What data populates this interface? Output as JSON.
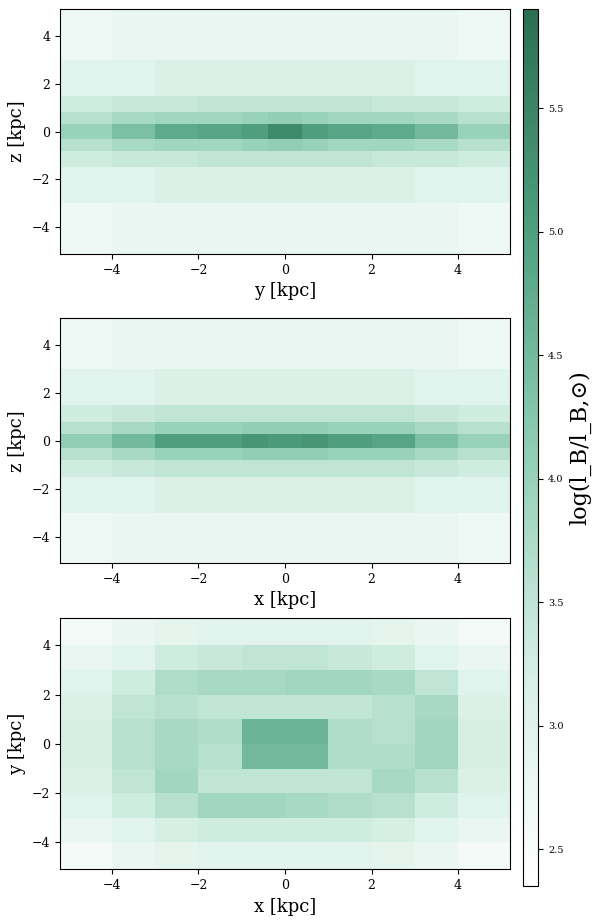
{
  "chart_data": [
    {
      "type": "heatmap",
      "xlabel": "y [kpc]",
      "ylabel": "z [kpc]",
      "xlim": [
        -5.2,
        5.2
      ],
      "ylim": [
        -5.1,
        5.1
      ],
      "xticks": [
        {
          "value": -4,
          "label": "−4"
        },
        {
          "value": -2,
          "label": "−2"
        },
        0,
        2,
        4
      ],
      "yticks": [
        {
          "value": -4,
          "label": "−4"
        },
        {
          "value": -2,
          "label": "−2"
        },
        0,
        2,
        4
      ],
      "x_edges": [
        -5.2,
        -4,
        -3,
        -2,
        -1,
        -0.4,
        0.4,
        1,
        2,
        3,
        4,
        5.2
      ],
      "y_edges": [
        -5.1,
        -3,
        -1.5,
        -0.8,
        -0.3,
        0.3,
        0.8,
        1.5,
        3,
        5.1
      ],
      "cells": [
        [
          2.7,
          2.8,
          2.8,
          2.8,
          2.8,
          2.8,
          2.8,
          2.8,
          2.8,
          2.8,
          2.7
        ],
        [
          3.0,
          3.0,
          3.1,
          3.1,
          3.1,
          3.1,
          3.1,
          3.1,
          3.1,
          3.0,
          3.0
        ],
        [
          3.3,
          3.4,
          3.4,
          3.5,
          3.5,
          3.5,
          3.5,
          3.5,
          3.4,
          3.4,
          3.3
        ],
        [
          3.6,
          3.8,
          3.9,
          3.9,
          4.0,
          4.1,
          4.0,
          3.9,
          3.9,
          3.8,
          3.6
        ],
        [
          4.0,
          4.4,
          4.8,
          4.9,
          5.0,
          5.4,
          5.0,
          4.9,
          4.8,
          4.5,
          4.0
        ],
        [
          3.6,
          3.8,
          3.9,
          3.9,
          4.0,
          4.1,
          4.0,
          3.9,
          3.9,
          3.8,
          3.6
        ],
        [
          3.3,
          3.4,
          3.4,
          3.5,
          3.5,
          3.5,
          3.5,
          3.5,
          3.4,
          3.4,
          3.3
        ],
        [
          3.0,
          3.0,
          3.1,
          3.1,
          3.1,
          3.1,
          3.1,
          3.1,
          3.1,
          3.0,
          3.0
        ],
        [
          2.7,
          2.8,
          2.8,
          2.8,
          2.8,
          2.8,
          2.8,
          2.8,
          2.8,
          2.8,
          2.7
        ]
      ]
    },
    {
      "type": "heatmap",
      "xlabel": "x [kpc]",
      "ylabel": "z [kpc]",
      "xlim": [
        -5.2,
        5.2
      ],
      "ylim": [
        -5.1,
        5.1
      ],
      "xticks": [
        {
          "value": -4,
          "label": "−4"
        },
        {
          "value": -2,
          "label": "−2"
        },
        0,
        2,
        4
      ],
      "yticks": [
        {
          "value": -4,
          "label": "−4"
        },
        {
          "value": -2,
          "label": "−2"
        },
        0,
        2,
        4
      ],
      "x_edges": [
        -5.2,
        -4,
        -3,
        -2,
        -1,
        -0.4,
        0.4,
        1,
        2,
        3,
        4,
        5.2
      ],
      "y_edges": [
        -5.1,
        -3,
        -1.5,
        -0.8,
        -0.3,
        0.3,
        0.8,
        1.5,
        3,
        5.1
      ],
      "cells": [
        [
          2.7,
          2.8,
          2.8,
          2.8,
          2.8,
          2.8,
          2.8,
          2.8,
          2.8,
          2.8,
          2.7
        ],
        [
          3.0,
          3.0,
          3.1,
          3.1,
          3.1,
          3.1,
          3.1,
          3.1,
          3.1,
          3.0,
          3.0
        ],
        [
          3.3,
          3.4,
          3.5,
          3.5,
          3.5,
          3.5,
          3.5,
          3.5,
          3.5,
          3.4,
          3.3
        ],
        [
          3.6,
          3.8,
          4.0,
          4.0,
          4.1,
          4.1,
          4.1,
          4.0,
          4.0,
          3.8,
          3.6
        ],
        [
          4.1,
          4.5,
          5.0,
          5.0,
          5.2,
          5.1,
          5.2,
          5.0,
          4.9,
          4.4,
          4.0
        ],
        [
          3.6,
          3.8,
          4.0,
          4.0,
          4.1,
          4.1,
          4.1,
          4.0,
          4.0,
          3.8,
          3.6
        ],
        [
          3.3,
          3.4,
          3.5,
          3.5,
          3.5,
          3.5,
          3.5,
          3.5,
          3.5,
          3.4,
          3.3
        ],
        [
          3.0,
          3.0,
          3.1,
          3.1,
          3.1,
          3.1,
          3.1,
          3.1,
          3.1,
          3.0,
          3.0
        ],
        [
          2.7,
          2.8,
          2.8,
          2.8,
          2.8,
          2.8,
          2.8,
          2.8,
          2.8,
          2.8,
          2.7
        ]
      ]
    },
    {
      "type": "heatmap",
      "xlabel": "x [kpc]",
      "ylabel": "y [kpc]",
      "xlim": [
        -5.2,
        5.2
      ],
      "ylim": [
        -5.1,
        5.1
      ],
      "xticks": [
        {
          "value": -4,
          "label": "−4"
        },
        {
          "value": -2,
          "label": "−2"
        },
        0,
        2,
        4
      ],
      "yticks": [
        {
          "value": -4,
          "label": "−4"
        },
        {
          "value": -2,
          "label": "−2"
        },
        0,
        2,
        4
      ],
      "x_edges": [
        -5.2,
        -4,
        -3,
        -2,
        -1,
        0,
        1,
        2,
        3,
        4,
        5.2
      ],
      "y_edges": [
        -5.1,
        -4,
        -3,
        -2,
        -1,
        0,
        1,
        2,
        3,
        4,
        5.1
      ],
      "cells": [
        [
          2.6,
          2.8,
          2.9,
          3.0,
          3.0,
          3.0,
          3.0,
          2.9,
          2.8,
          2.6
        ],
        [
          2.8,
          3.0,
          3.2,
          3.3,
          3.3,
          3.3,
          3.3,
          3.2,
          3.0,
          2.8
        ],
        [
          3.0,
          3.3,
          3.6,
          3.9,
          3.9,
          3.8,
          3.7,
          3.6,
          3.3,
          3.0
        ],
        [
          3.1,
          3.5,
          3.9,
          3.5,
          3.5,
          3.5,
          3.5,
          3.8,
          3.6,
          3.1
        ],
        [
          3.2,
          3.6,
          3.8,
          3.6,
          4.5,
          4.5,
          3.7,
          3.7,
          3.9,
          3.2
        ],
        [
          3.2,
          3.6,
          3.8,
          3.7,
          4.6,
          4.6,
          3.7,
          3.6,
          3.9,
          3.2
        ],
        [
          3.1,
          3.5,
          3.6,
          3.5,
          3.5,
          3.5,
          3.5,
          3.6,
          3.8,
          3.1
        ],
        [
          3.0,
          3.3,
          3.7,
          3.8,
          3.8,
          3.9,
          3.9,
          3.8,
          3.5,
          3.0
        ],
        [
          2.8,
          3.0,
          3.3,
          3.4,
          3.5,
          3.5,
          3.4,
          3.3,
          3.0,
          2.8
        ],
        [
          2.6,
          2.8,
          2.9,
          3.0,
          3.0,
          3.0,
          3.0,
          2.9,
          2.8,
          2.6
        ]
      ]
    }
  ],
  "colorbar": {
    "label": "log(l_B/l_B,⊙)",
    "range": [
      2.35,
      5.9
    ],
    "ticks": [
      2.5,
      3.0,
      3.5,
      4.0,
      4.5,
      5.0,
      5.5
    ]
  }
}
